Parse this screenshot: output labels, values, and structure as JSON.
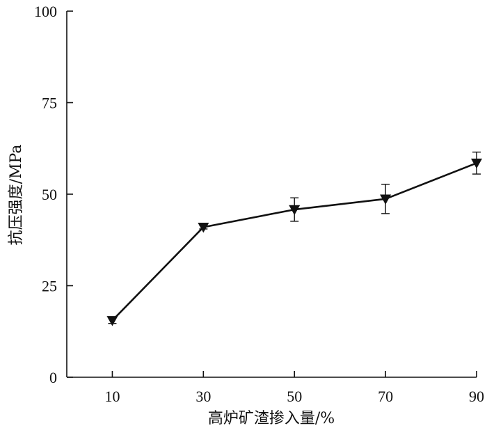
{
  "chart_data": {
    "type": "line",
    "title": "",
    "xlabel": "高炉矿渣掺入量/%",
    "ylabel": "抗压强度/MPa",
    "x": [
      10,
      30,
      50,
      70,
      90
    ],
    "xticks": [
      "10",
      "30",
      "50",
      "70",
      "90"
    ],
    "yticks": [
      "0",
      "25",
      "50",
      "75",
      "100"
    ],
    "xlim": [
      0,
      90
    ],
    "ylim": [
      0,
      100
    ],
    "grid": false,
    "series": [
      {
        "values": [
          15.5,
          41.0,
          45.8,
          48.7,
          58.5
        ],
        "error": [
          0.8,
          0.5,
          3.2,
          4.0,
          3.0
        ],
        "marker": "down-triangle",
        "color": "#111111"
      }
    ]
  }
}
